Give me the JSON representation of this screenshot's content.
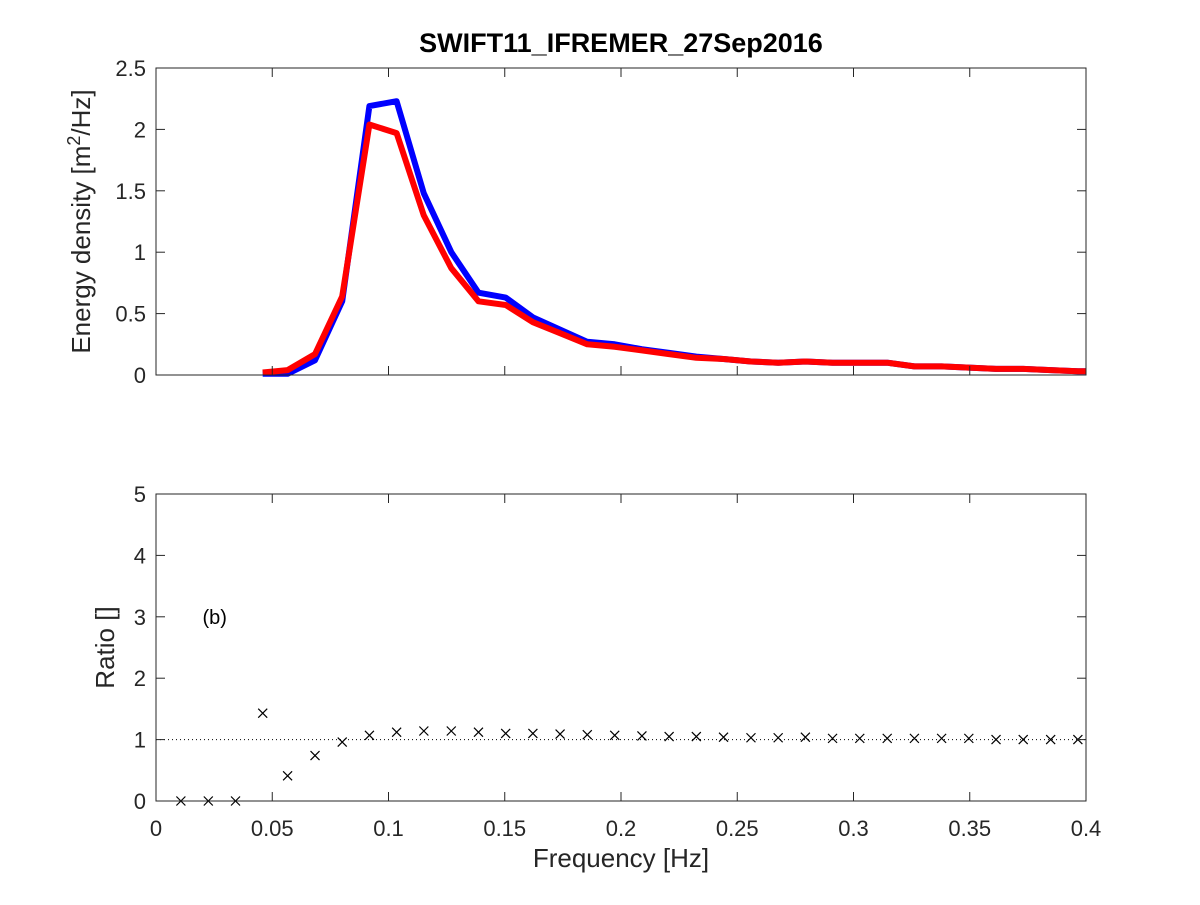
{
  "chart_data": [
    {
      "type": "line",
      "title": "SWIFT11_IFREMER_27Sep2016",
      "xlabel": "",
      "ylabel_main": "Energy density [m",
      "ylabel_sup": "2",
      "ylabel_tail": "/Hz]",
      "xlim": [
        0,
        0.4
      ],
      "ylim": [
        0,
        2.5
      ],
      "xticks": [
        0,
        0.05,
        0.1,
        0.15,
        0.2,
        0.25,
        0.3,
        0.35,
        0.4
      ],
      "yticks": [
        0,
        0.5,
        1,
        1.5,
        2,
        2.5
      ],
      "xtick_labels_visible": false,
      "grid": false,
      "series": [
        {
          "color": "#0000ff",
          "x": [
            0.0459,
            0.0566,
            0.0684,
            0.0801,
            0.0918,
            0.1035,
            0.1152,
            0.127,
            0.1387,
            0.1504,
            0.1621,
            0.1738,
            0.1855,
            0.1973,
            0.209,
            0.2207,
            0.2324,
            0.2441,
            0.2559,
            0.2676,
            0.2793,
            0.291,
            0.3027,
            0.3145,
            0.3262,
            0.3379,
            0.3496,
            0.3613,
            0.373,
            0.3848,
            0.3965,
            0.4
          ],
          "y": [
            0.01,
            0.01,
            0.12,
            0.6,
            2.19,
            2.23,
            1.48,
            1.0,
            0.67,
            0.63,
            0.47,
            0.37,
            0.27,
            0.25,
            0.21,
            0.18,
            0.15,
            0.13,
            0.11,
            0.1,
            0.11,
            0.1,
            0.1,
            0.1,
            0.07,
            0.07,
            0.06,
            0.05,
            0.05,
            0.04,
            0.03,
            0.03
          ]
        },
        {
          "color": "#ff0000",
          "x": [
            0.0459,
            0.0566,
            0.0684,
            0.0801,
            0.0918,
            0.1035,
            0.1152,
            0.127,
            0.1387,
            0.1504,
            0.1621,
            0.1738,
            0.1855,
            0.1973,
            0.209,
            0.2207,
            0.2324,
            0.2441,
            0.2559,
            0.2676,
            0.2793,
            0.291,
            0.3027,
            0.3145,
            0.3262,
            0.3379,
            0.3496,
            0.3613,
            0.373,
            0.3848,
            0.3965,
            0.4
          ],
          "y": [
            0.02,
            0.04,
            0.17,
            0.64,
            2.04,
            1.97,
            1.3,
            0.87,
            0.6,
            0.57,
            0.43,
            0.34,
            0.25,
            0.23,
            0.2,
            0.17,
            0.14,
            0.13,
            0.11,
            0.1,
            0.11,
            0.1,
            0.1,
            0.1,
            0.07,
            0.07,
            0.06,
            0.05,
            0.05,
            0.04,
            0.03,
            0.03
          ]
        }
      ]
    },
    {
      "type": "scatter",
      "title": "",
      "xlabel": "Frequency [Hz]",
      "ylabel": "Ratio []",
      "annotation": "(b)",
      "annotation_at": [
        0.02,
        3.0
      ],
      "xlim": [
        0,
        0.4
      ],
      "ylim": [
        0,
        5
      ],
      "xticks": [
        0,
        0.05,
        0.1,
        0.15,
        0.2,
        0.25,
        0.3,
        0.35,
        0.4
      ],
      "yticks": [
        0,
        1,
        2,
        3,
        4,
        5
      ],
      "grid": false,
      "reference_line": {
        "y": 1,
        "style": "dotted"
      },
      "series": [
        {
          "marker": "x",
          "color": "#000000",
          "x": [
            0.0107,
            0.0225,
            0.0342,
            0.0459,
            0.0566,
            0.0684,
            0.0801,
            0.0918,
            0.1035,
            0.1152,
            0.127,
            0.1387,
            0.1504,
            0.1621,
            0.1738,
            0.1855,
            0.1973,
            0.209,
            0.2207,
            0.2324,
            0.2441,
            0.2559,
            0.2676,
            0.2793,
            0.291,
            0.3027,
            0.3145,
            0.3262,
            0.3379,
            0.3496,
            0.3613,
            0.373,
            0.3848,
            0.3965
          ],
          "y": [
            0,
            0,
            0,
            1.43,
            0.41,
            0.74,
            0.96,
            1.07,
            1.12,
            1.14,
            1.14,
            1.12,
            1.1,
            1.1,
            1.09,
            1.08,
            1.07,
            1.06,
            1.05,
            1.05,
            1.04,
            1.03,
            1.03,
            1.04,
            1.02,
            1.02,
            1.02,
            1.02,
            1.02,
            1.02,
            1.0,
            1.0,
            1.0,
            1.0
          ]
        }
      ]
    }
  ]
}
